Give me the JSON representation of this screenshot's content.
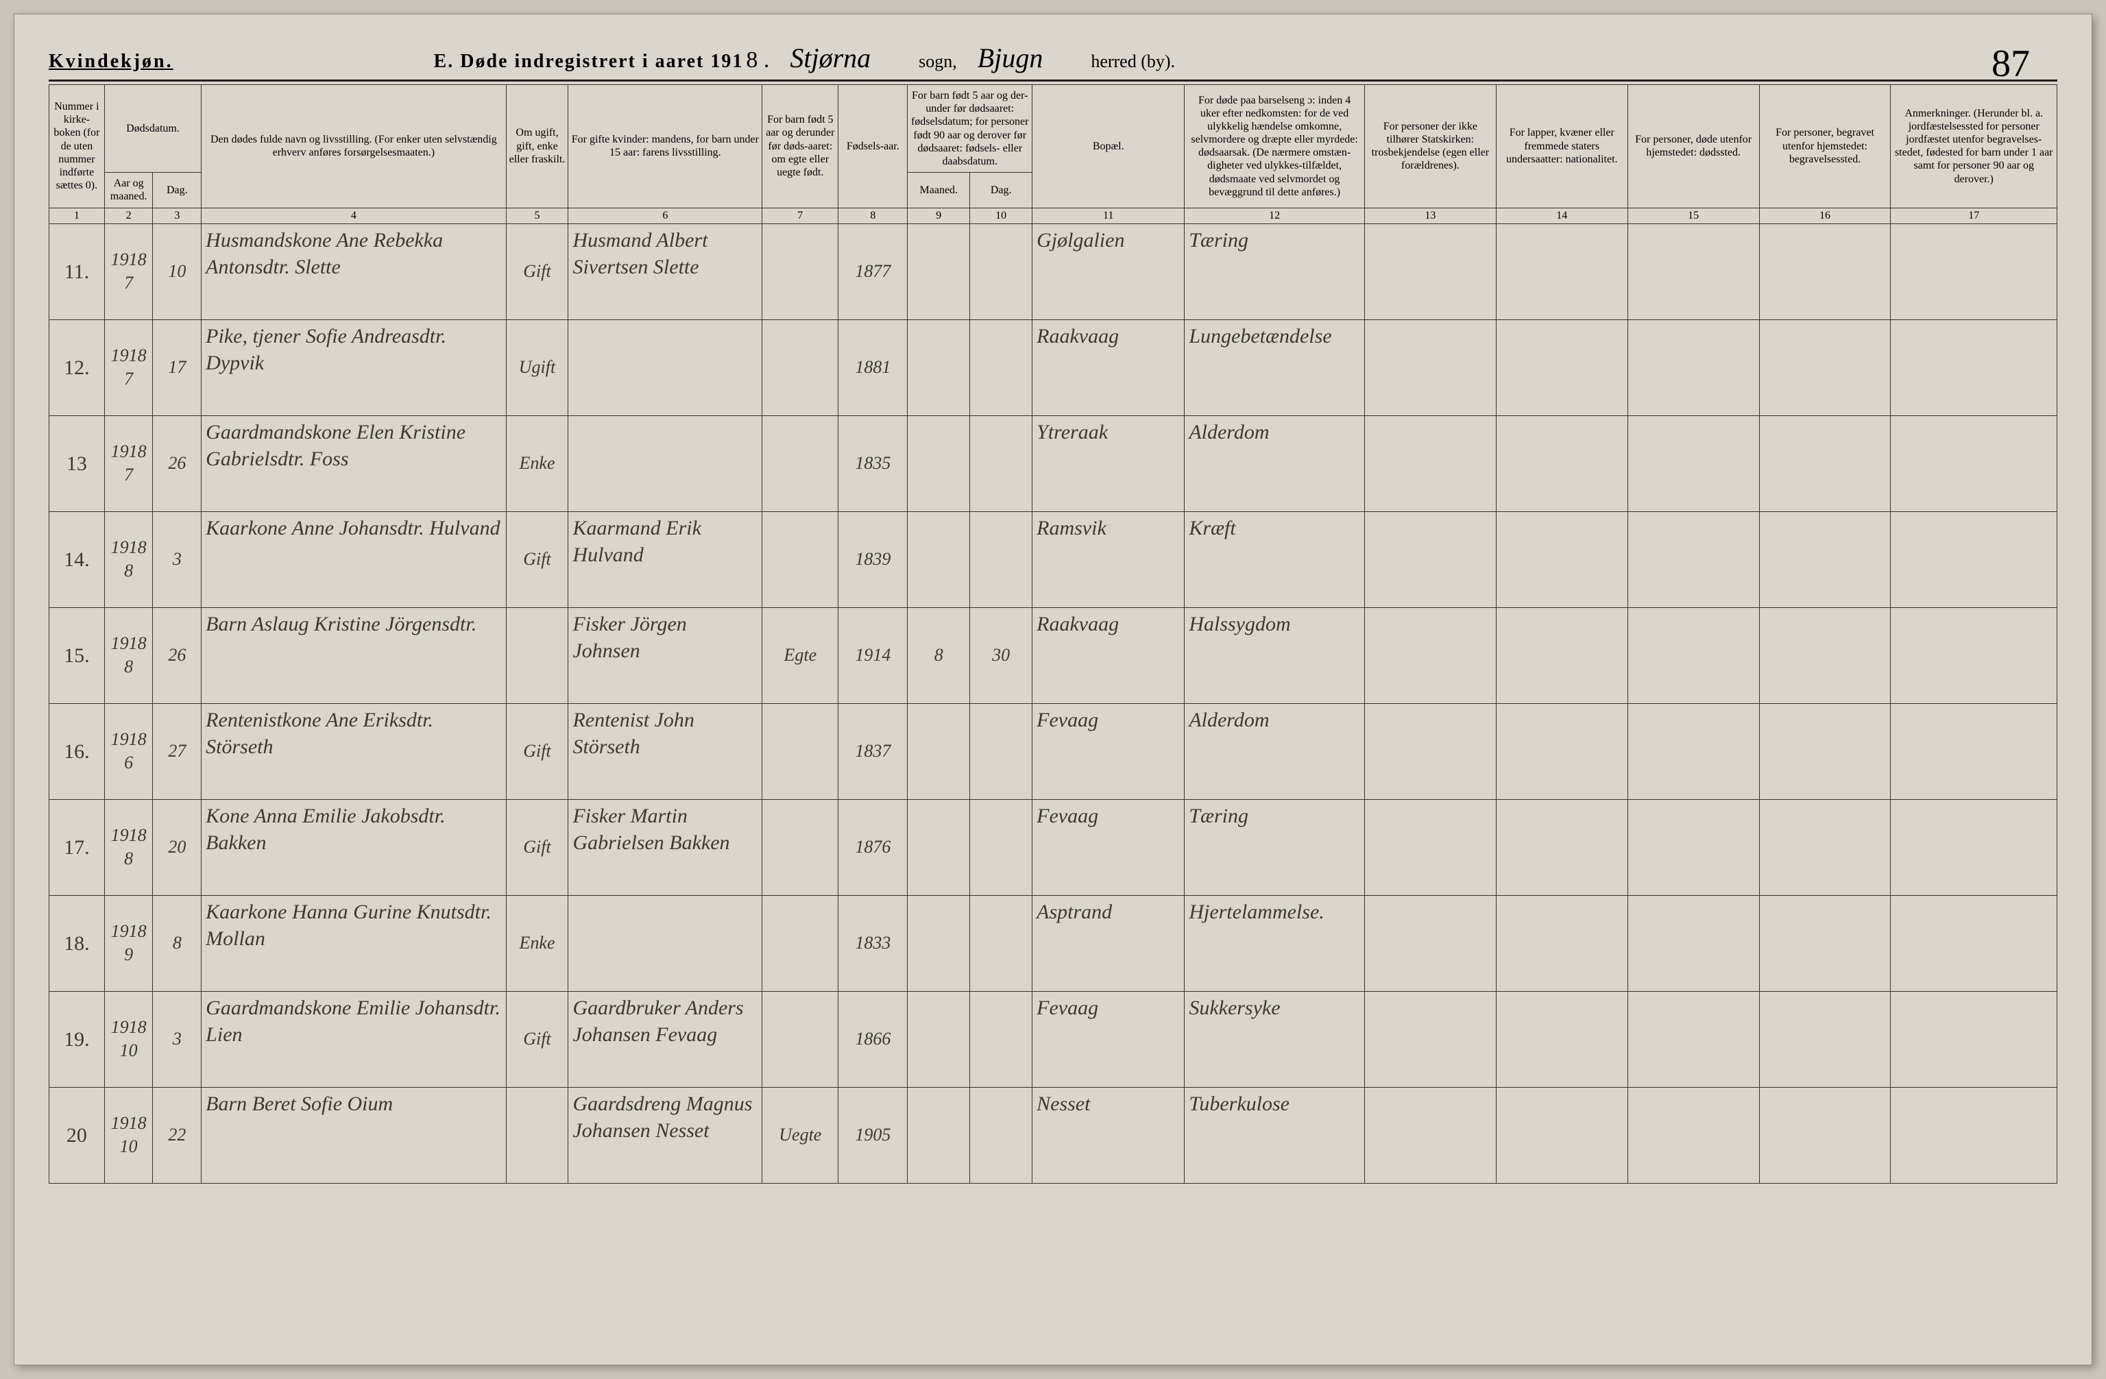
{
  "header": {
    "gender": "Kvindekjøn.",
    "title_prefix": "E.  Døde indregistrert i aaret 191",
    "year_suffix": "8 .",
    "sogn_hand": "Stjørna",
    "sogn_label": "sogn,",
    "herred_hand": "Bjugn",
    "herred_label": "herred (by).",
    "page_number": "87"
  },
  "columns": {
    "c1": "Nummer i kirke-boken (for de uten nummer indførte sættes 0).",
    "c2_3": "Dødsdatum.",
    "c2": "Aar og maaned.",
    "c3": "Dag.",
    "c4": "Den dødes fulde navn og livsstilling. (For enker uten selvstændig erhverv anføres forsørgelsesmaaten.)",
    "c5": "Om ugift, gift, enke eller fraskilt.",
    "c6": "For gifte kvinder: mandens, for barn under 15 aar: farens livsstilling.",
    "c7": "For barn født 5 aar og derunder før døds-aaret: om egte eller uegte født.",
    "c8": "Fødsels-aar.",
    "c9_10": "For barn født 5 aar og der-under før dødsaaret: fødselsdatum; for personer født 90 aar og derover før dødsaaret: fødsels- eller daabsdatum.",
    "c9": "Maaned.",
    "c10": "Dag.",
    "c11": "Bopæl.",
    "c12": "For døde paa barselseng ɔ: inden 4 uker efter nedkomsten: for de ved ulykkelig hændelse omkomne, selvmordere og dræpte eller myrdede: dødsaarsak. (De nærmere omstæn-digheter ved ulykkes-tilfældet, dødsmaate ved selvmordet og bevæggrund til dette anføres.)",
    "c13": "For personer der ikke tilhører Statskirken: trosbekjendelse (egen eller forældrenes).",
    "c14": "For lapper, kvæner eller fremmede staters undersaatter: nationalitet.",
    "c15": "For personer, døde utenfor hjemstedet: dødssted.",
    "c16": "For personer, begravet utenfor hjemstedet: begravelsessted.",
    "c17": "Anmerkninger. (Herunder bl. a. jordfæstelsessted for personer jordfæstet utenfor begravelses-stedet, fødested for barn under 1 aar samt for personer 90 aar og derover.)"
  },
  "colnums": [
    "1",
    "2",
    "3",
    "4",
    "5",
    "6",
    "7",
    "8",
    "9",
    "10",
    "11",
    "12",
    "13",
    "14",
    "15",
    "16",
    "17"
  ],
  "rows": [
    {
      "n": "11.",
      "year": "1918",
      "mon": "7",
      "day": "10",
      "name": "Husmandskone Ane Rebekka Antonsdtr. Slette",
      "status": "Gift",
      "father": "Husmand Albert Sivertsen Slette",
      "legit": "",
      "birth": "1877",
      "bm": "",
      "bd": "",
      "bopael": "Gjølgalien",
      "cause": "Tæring"
    },
    {
      "n": "12.",
      "year": "1918",
      "mon": "7",
      "day": "17",
      "name": "Pike, tjener Sofie Andreasdtr. Dypvik",
      "status": "Ugift",
      "father": "",
      "legit": "",
      "birth": "1881",
      "bm": "",
      "bd": "",
      "bopael": "Raakvaag",
      "cause": "Lungebetændelse"
    },
    {
      "n": "13",
      "year": "1918",
      "mon": "7",
      "day": "26",
      "name": "Gaardmandskone Elen Kristine Gabrielsdtr. Foss",
      "status": "Enke",
      "father": "",
      "legit": "",
      "birth": "1835",
      "bm": "",
      "bd": "",
      "bopael": "Ytreraak",
      "cause": "Alderdom"
    },
    {
      "n": "14.",
      "year": "1918",
      "mon": "8",
      "day": "3",
      "name": "Kaarkone Anne Johansdtr. Hulvand",
      "status": "Gift",
      "father": "Kaarmand Erik Hulvand",
      "legit": "",
      "birth": "1839",
      "bm": "",
      "bd": "",
      "bopael": "Ramsvik",
      "cause": "Kræft"
    },
    {
      "n": "15.",
      "year": "1918",
      "mon": "8",
      "day": "26",
      "name": "Barn Aslaug Kristine Jörgensdtr.",
      "status": "",
      "father": "Fisker Jörgen Johnsen",
      "legit": "Egte",
      "birth": "1914",
      "bm": "8",
      "bd": "30",
      "bopael": "Raakvaag",
      "cause": "Halssygdom"
    },
    {
      "n": "16.",
      "year": "1918",
      "mon": "6",
      "day": "27",
      "name": "Rentenistkone Ane Eriksdtr. Störseth",
      "status": "Gift",
      "father": "Rentenist John Störseth",
      "legit": "",
      "birth": "1837",
      "bm": "",
      "bd": "",
      "bopael": "Fevaag",
      "cause": "Alderdom"
    },
    {
      "n": "17.",
      "year": "1918",
      "mon": "8",
      "day": "20",
      "name": "Kone Anna Emilie Jakobsdtr. Bakken",
      "status": "Gift",
      "father": "Fisker Martin Gabrielsen Bakken",
      "legit": "",
      "birth": "1876",
      "bm": "",
      "bd": "",
      "bopael": "Fevaag",
      "cause": "Tæring"
    },
    {
      "n": "18.",
      "year": "1918",
      "mon": "9",
      "day": "8",
      "name": "Kaarkone Hanna Gurine Knutsdtr. Mollan",
      "status": "Enke",
      "father": "",
      "legit": "",
      "birth": "1833",
      "bm": "",
      "bd": "",
      "bopael": "Asptrand",
      "cause": "Hjertelammelse."
    },
    {
      "n": "19.",
      "year": "1918",
      "mon": "10",
      "day": "3",
      "name": "Gaardmandskone Emilie Johansdtr. Lien",
      "status": "Gift",
      "father": "Gaardbruker Anders Johansen Fevaag",
      "legit": "",
      "birth": "1866",
      "bm": "",
      "bd": "",
      "bopael": "Fevaag",
      "cause": "Sukkersyke"
    },
    {
      "n": "20",
      "year": "1918",
      "mon": "10",
      "day": "22",
      "name": "Barn Beret Sofie Oium",
      "status": "",
      "father": "Gaardsdreng Magnus Johansen Nesset",
      "legit": "Uegte",
      "birth": "1905",
      "bm": "",
      "bd": "",
      "bopael": "Nesset",
      "cause": "Tuberkulose"
    }
  ],
  "style": {
    "page_bg": "#d9d7cc",
    "body_bg": "#c8c7bc",
    "border_color": "#333333",
    "header_rule": "#222222",
    "print_font": "Georgia, Times New Roman, serif",
    "hand_font": "Brush Script MT, cursive",
    "hand_color": "#3a3a2f",
    "header_fontsize": 28,
    "th_fontsize": 16,
    "hand_fontsize": 30
  }
}
